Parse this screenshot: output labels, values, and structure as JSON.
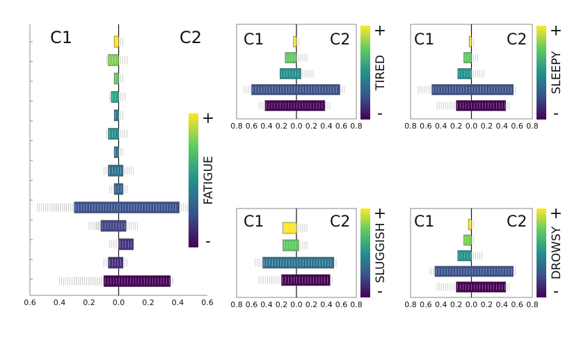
{
  "chart_data": [
    {
      "type": "bar",
      "panel": "fatigue",
      "left_label": "C1",
      "right_label": "C2",
      "colorbar_label": "FATIGUE",
      "colorbar_plus": "+",
      "colorbar_minus": "-",
      "xlim": [
        -0.6,
        0.6
      ],
      "x_ticks": [
        "0.6",
        "0.4",
        "0.2",
        "0.0",
        "0.2",
        "0.4",
        "0.6"
      ],
      "x_tick_values": [
        -0.6,
        -0.4,
        -0.2,
        0,
        0.2,
        0.4,
        0.6
      ],
      "rows": [
        {
          "left": -0.03,
          "right": 0.0,
          "color": "#fde725",
          "scatter": [
            0.02,
            0.03
          ]
        },
        {
          "left": -0.07,
          "right": 0.0,
          "color": "#7ad151",
          "scatter": [
            -0.08,
            0.03,
            0.07
          ]
        },
        {
          "left": -0.03,
          "right": 0.0,
          "color": "#5ec962",
          "scatter": [
            0.03
          ]
        },
        {
          "left": -0.05,
          "right": 0.0,
          "color": "#22a884",
          "scatter": [
            -0.06,
            0.03,
            0.05
          ]
        },
        {
          "left": -0.03,
          "right": 0.0,
          "color": "#2a788e",
          "scatter": [
            0.03
          ]
        },
        {
          "left": -0.07,
          "right": 0.0,
          "color": "#21918c",
          "scatter": [
            -0.08,
            0.04,
            0.06
          ]
        },
        {
          "left": -0.03,
          "right": 0.0,
          "color": "#2a788e",
          "scatter": [
            0.03
          ]
        },
        {
          "left": -0.07,
          "right": 0.03,
          "color": "#2c728e",
          "scatter": [
            -0.1,
            0.07,
            0.1
          ]
        },
        {
          "left": -0.03,
          "right": 0.03,
          "color": "#33638d",
          "scatter": [
            -0.06,
            0.06
          ]
        },
        {
          "left": -0.3,
          "right": 0.41,
          "color": "#3b528b",
          "scatter": [
            -0.55,
            -0.45,
            0.45,
            0.5
          ]
        },
        {
          "left": -0.12,
          "right": 0.05,
          "color": "#414487",
          "scatter": [
            -0.2,
            -0.15,
            0.1,
            0.14
          ]
        },
        {
          "left": 0.0,
          "right": 0.1,
          "color": "#46327e",
          "scatter": [
            -0.06,
            0.03
          ]
        },
        {
          "left": -0.07,
          "right": 0.03,
          "color": "#472d7b",
          "scatter": [
            -0.1,
            0.06
          ]
        },
        {
          "left": -0.1,
          "right": 0.35,
          "color": "#440154",
          "scatter": [
            -0.4,
            -0.3,
            0.38
          ]
        }
      ]
    },
    {
      "type": "bar",
      "panel": "tired",
      "left_label": "C1",
      "right_label": "C2",
      "colorbar_label": "TIRED",
      "colorbar_plus": "+",
      "colorbar_minus": "-",
      "xlim": [
        -0.8,
        0.8
      ],
      "x_ticks": [
        "0.8",
        "0.6",
        "0.4",
        "0.2",
        "0.0",
        "0.2",
        "0.4",
        "0.6",
        "0.8"
      ],
      "x_tick_values": [
        -0.8,
        -0.6,
        -0.4,
        -0.2,
        0,
        0.2,
        0.4,
        0.6,
        0.8
      ],
      "rows": [
        {
          "left": -0.04,
          "right": 0.0,
          "color": "#fde725",
          "scatter": [
            0.03
          ]
        },
        {
          "left": -0.15,
          "right": 0.0,
          "color": "#5ec962",
          "scatter": [
            0.1,
            0.15
          ]
        },
        {
          "left": -0.22,
          "right": 0.06,
          "color": "#21918c",
          "scatter": [
            0.15,
            0.25
          ]
        },
        {
          "left": -0.6,
          "right": 0.58,
          "color": "#3b528b",
          "scatter": [
            -0.7,
            0.65
          ]
        },
        {
          "left": -0.42,
          "right": 0.38,
          "color": "#440154",
          "scatter": [
            -0.5,
            0.45
          ]
        }
      ]
    },
    {
      "type": "bar",
      "panel": "sleepy",
      "left_label": "C1",
      "right_label": "C2",
      "colorbar_label": "SLEEPY",
      "colorbar_plus": "+",
      "colorbar_minus": "-",
      "xlim": [
        -0.8,
        0.8
      ],
      "x_ticks": [
        "0.8",
        "0.6",
        "0.4",
        "0.2",
        "0.0",
        "0.2",
        "0.4",
        "0.6",
        "0.8"
      ],
      "x_tick_values": [
        -0.8,
        -0.6,
        -0.4,
        -0.2,
        0,
        0.2,
        0.4,
        0.6,
        0.8
      ],
      "rows": [
        {
          "left": -0.03,
          "right": 0.0,
          "color": "#fde725",
          "scatter": [
            0.03
          ]
        },
        {
          "left": -0.1,
          "right": 0.0,
          "color": "#5ec962",
          "scatter": [
            0.05,
            0.1
          ]
        },
        {
          "left": -0.18,
          "right": 0.0,
          "color": "#21918c",
          "scatter": [
            0.1,
            0.18
          ]
        },
        {
          "left": -0.52,
          "right": 0.55,
          "color": "#3b528b",
          "scatter": [
            -0.7,
            0.6
          ]
        },
        {
          "left": -0.2,
          "right": 0.45,
          "color": "#440154",
          "scatter": [
            -0.45,
            0.5
          ]
        }
      ]
    },
    {
      "type": "bar",
      "panel": "sluggish",
      "left_label": "C1",
      "right_label": "C2",
      "colorbar_label": "SLUGGISH",
      "colorbar_plus": "+",
      "colorbar_minus": "-",
      "xlim": [
        -0.8,
        0.8
      ],
      "x_ticks": [
        "0.8",
        "0.6",
        "0.4",
        "0.2",
        "0.0",
        "0.2",
        "0.4",
        "0.6",
        "0.8"
      ],
      "x_tick_values": [
        -0.8,
        -0.6,
        -0.4,
        -0.2,
        0,
        0.2,
        0.4,
        0.6,
        0.8
      ],
      "rows": [
        {
          "left": -0.18,
          "right": 0.0,
          "color": "#fde725",
          "scatter": [
            0.08,
            0.15
          ]
        },
        {
          "left": -0.18,
          "right": 0.03,
          "color": "#5ec962",
          "scatter": [
            0.08,
            0.15
          ]
        },
        {
          "left": -0.45,
          "right": 0.5,
          "color": "#2c728e",
          "scatter": [
            -0.55,
            0.55
          ]
        },
        {
          "left": -0.2,
          "right": 0.45,
          "color": "#440154",
          "scatter": [
            -0.5,
            0.5
          ]
        }
      ]
    },
    {
      "type": "bar",
      "panel": "drowsy",
      "left_label": "C1",
      "right_label": "C2",
      "colorbar_label": "DROWSY",
      "colorbar_plus": "+",
      "colorbar_minus": "-",
      "xlim": [
        -0.8,
        0.8
      ],
      "x_ticks": [
        "0.8",
        "0.6",
        "0.4",
        "0.2",
        "0.0",
        "0.2",
        "0.4",
        "0.6",
        "0.8"
      ],
      "x_tick_values": [
        -0.8,
        -0.6,
        -0.4,
        -0.2,
        0,
        0.2,
        0.4,
        0.6,
        0.8
      ],
      "rows": [
        {
          "left": -0.04,
          "right": 0.0,
          "color": "#fde725",
          "scatter": [
            0.03
          ]
        },
        {
          "left": -0.1,
          "right": 0.0,
          "color": "#7ad151",
          "scatter": [
            0.05
          ]
        },
        {
          "left": -0.18,
          "right": 0.0,
          "color": "#21918c",
          "scatter": [
            0.08,
            0.15
          ]
        },
        {
          "left": -0.48,
          "right": 0.55,
          "color": "#3b528b",
          "scatter": [
            -0.55,
            0.6
          ]
        },
        {
          "left": -0.2,
          "right": 0.45,
          "color": "#440154",
          "scatter": [
            -0.45,
            0.5
          ]
        }
      ]
    }
  ],
  "colorbar_colors": [
    "#440154",
    "#3b528b",
    "#21918c",
    "#5ec962",
    "#fde725"
  ]
}
